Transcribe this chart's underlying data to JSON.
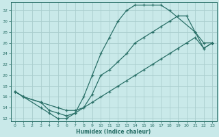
{
  "xlabel": "Humidex (Indice chaleur)",
  "bg_color": "#c9e9e9",
  "grid_color": "#aacece",
  "line_color": "#2a7068",
  "xlim": [
    -0.5,
    23.5
  ],
  "ylim": [
    11.5,
    33.5
  ],
  "xticks": [
    0,
    1,
    2,
    3,
    4,
    5,
    6,
    7,
    8,
    9,
    10,
    11,
    12,
    13,
    14,
    15,
    16,
    17,
    18,
    19,
    20,
    21,
    22,
    23
  ],
  "yticks": [
    12,
    14,
    16,
    18,
    20,
    22,
    24,
    26,
    28,
    30,
    32
  ],
  "line1_x": [
    0,
    1,
    3,
    4,
    5,
    6,
    7,
    8,
    9,
    10,
    11,
    12,
    13,
    14,
    15,
    16,
    17,
    18,
    21,
    22,
    23
  ],
  "line1_y": [
    17,
    16,
    14,
    13,
    12,
    12,
    13,
    16,
    20,
    24,
    27,
    30,
    32,
    33,
    33,
    33,
    33,
    32,
    28,
    25,
    26
  ],
  "line2_x": [
    0,
    1,
    3,
    5,
    6,
    7,
    8,
    9,
    10,
    11,
    12,
    13,
    14,
    15,
    16,
    17,
    18,
    19,
    20,
    21,
    22,
    23
  ],
  "line2_y": [
    17,
    16,
    15,
    14,
    13.5,
    13.5,
    14,
    15,
    16,
    17,
    18,
    19,
    20,
    21,
    22,
    23,
    24,
    25,
    26,
    27,
    25,
    26
  ],
  "line3_x": [
    0,
    1,
    3,
    4,
    5,
    6,
    7,
    8,
    9,
    10,
    11,
    12,
    13,
    14,
    15,
    16,
    17,
    18,
    19,
    20,
    21,
    22,
    23
  ],
  "line3_y": [
    17,
    16,
    15,
    13.5,
    13,
    12.5,
    13,
    14,
    16.5,
    20,
    21,
    22.5,
    24,
    26,
    27,
    28,
    29,
    30,
    31,
    31,
    28,
    26,
    26
  ]
}
